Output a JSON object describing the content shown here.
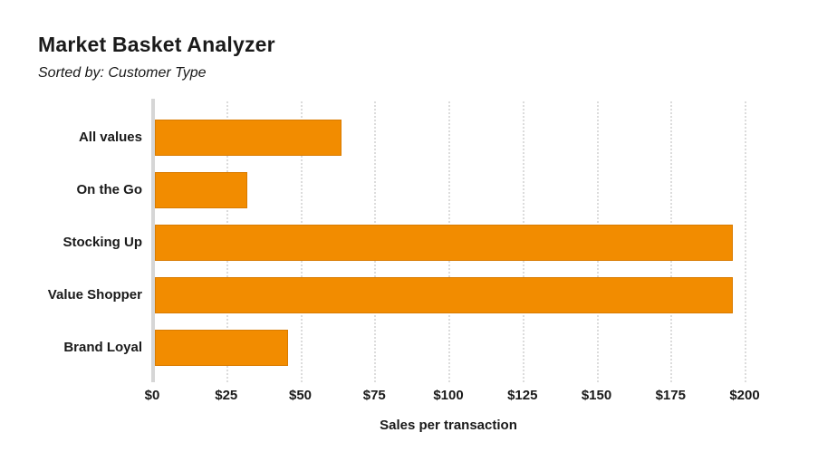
{
  "header": {
    "title": "Market Basket Analyzer",
    "subtitle": "Sorted by: Customer Type"
  },
  "chart_data": {
    "type": "bar",
    "orientation": "horizontal",
    "title": "Market Basket Analyzer",
    "subtitle": "Sorted by: Customer Type",
    "categories": [
      "All values",
      "On the Go",
      "Stocking Up",
      "Value Shopper",
      "Brand Loyal"
    ],
    "values": [
      64,
      32,
      196,
      196,
      46
    ],
    "xlabel": "Sales per transaction",
    "ylabel": "",
    "xticks_labels": [
      "$0",
      "$25",
      "$50",
      "$75",
      "$100",
      "$125",
      "$150",
      "$175",
      "$200"
    ],
    "xticks_values": [
      0,
      25,
      50,
      75,
      100,
      125,
      150,
      175,
      200
    ],
    "xlim": [
      0,
      200
    ],
    "grid": true,
    "gridline_style": "dotted-vertical",
    "legend": false,
    "colors": {
      "bar": "#f28c00",
      "axis_line": "#d6d6d6",
      "gridline": "#dcdcdc",
      "text": "#1a1a1a",
      "background": "#ffffff"
    }
  }
}
